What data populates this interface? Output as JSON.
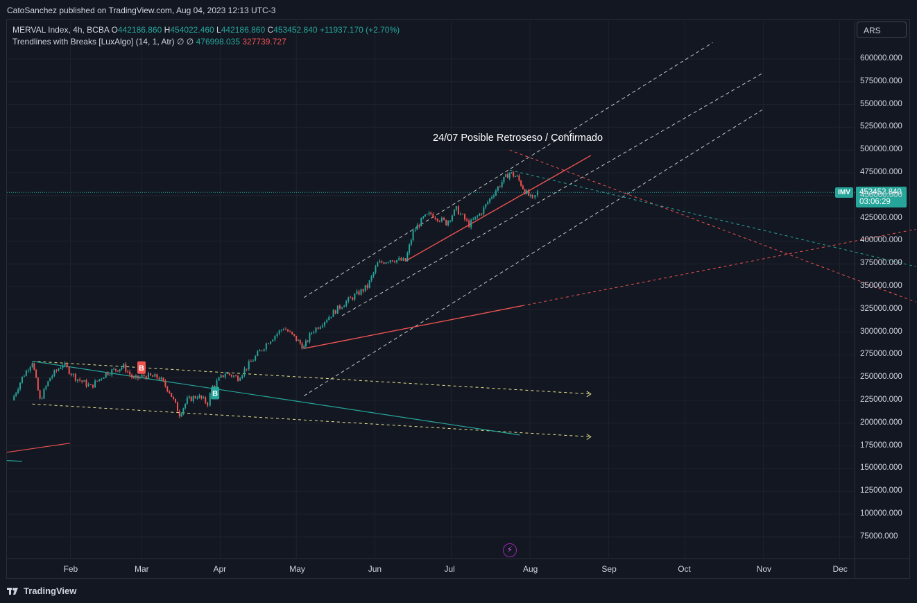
{
  "header": {
    "published": "CatoSanchez published on TradingView.com, Aug 04, 2023 12:13 UTC-3"
  },
  "legend": {
    "symbol": "MERVAL Index, 4h, BCBA",
    "o_label": "O",
    "o": "442186.860",
    "h_label": "H",
    "h": "454022.460",
    "l_label": "L",
    "l": "442186.860",
    "c_label": "C",
    "c": "453452.840",
    "change": "+11937.170 (+2.70%)",
    "indicator": "Trendlines with Breaks [LuxAlgo] (14, 1, Atr)",
    "indicator_flags": "∅  ∅",
    "ind_v1": "476998.035",
    "ind_v2": "327739.727"
  },
  "currency": "ARS",
  "symbol_tag": "IMV",
  "last_price": "453452.840",
  "countdown": "03:06:29",
  "annotation": "24/07 Posible Retroseso / Confirmado",
  "footer": {
    "brand": "TradingView"
  },
  "colors": {
    "up": "#26a69a",
    "down": "#ef5350",
    "bg": "#131722",
    "white_dash": "#c8c8c8",
    "yellow_dash": "#e6e68c",
    "teal_line": "#26a69a"
  },
  "icons": {
    "flash": "lightning-icon",
    "logo": "tradingview-logo-icon"
  },
  "chart_data": {
    "type": "candlestick",
    "ylim": [
      55000,
      625000
    ],
    "y_ticks": [
      "600000.000",
      "575000.000",
      "550000.000",
      "525000.000",
      "500000.000",
      "475000.000",
      "450000.000",
      "425000.000",
      "400000.000",
      "375000.000",
      "350000.000",
      "325000.000",
      "300000.000",
      "275000.000",
      "250000.000",
      "225000.000",
      "200000.000",
      "175000.000",
      "150000.000",
      "125000.000",
      "100000.000",
      "75000.000"
    ],
    "x_ticks": [
      "Feb",
      "Mar",
      "Apr",
      "May",
      "Jun",
      "Jul",
      "Aug",
      "Sep",
      "Oct",
      "Nov",
      "Dec"
    ],
    "series": [
      {
        "name": "MERVAL Index",
        "close_path": [
          [
            "2023-01-09",
            225000
          ],
          [
            "2023-01-13",
            250000
          ],
          [
            "2023-01-17",
            268000
          ],
          [
            "2023-01-20",
            225000
          ],
          [
            "2023-01-24",
            250000
          ],
          [
            "2023-01-29",
            265000
          ],
          [
            "2023-02-03",
            250000
          ],
          [
            "2023-02-09",
            240000
          ],
          [
            "2023-02-15",
            255000
          ],
          [
            "2023-02-22",
            262000
          ],
          [
            "2023-02-26",
            248000
          ],
          [
            "2023-03-02",
            252000
          ],
          [
            "2023-03-08",
            250000
          ],
          [
            "2023-03-12",
            235000
          ],
          [
            "2023-03-16",
            210000
          ],
          [
            "2023-03-19",
            225000
          ],
          [
            "2023-03-23",
            230000
          ],
          [
            "2023-03-27",
            222000
          ],
          [
            "2023-03-29",
            240000
          ],
          [
            "2023-04-03",
            255000
          ],
          [
            "2023-04-08",
            250000
          ],
          [
            "2023-04-14",
            270000
          ],
          [
            "2023-04-20",
            290000
          ],
          [
            "2023-04-26",
            305000
          ],
          [
            "2023-05-01",
            292000
          ],
          [
            "2023-05-04",
            283000
          ],
          [
            "2023-05-07",
            300000
          ],
          [
            "2023-05-13",
            315000
          ],
          [
            "2023-05-19",
            330000
          ],
          [
            "2023-05-24",
            340000
          ],
          [
            "2023-05-29",
            350000
          ],
          [
            "2023-06-02",
            375000
          ],
          [
            "2023-06-07",
            380000
          ],
          [
            "2023-06-13",
            378000
          ],
          [
            "2023-06-16",
            410000
          ],
          [
            "2023-06-20",
            425000
          ],
          [
            "2023-06-23",
            430000
          ],
          [
            "2023-06-29",
            420000
          ],
          [
            "2023-07-03",
            435000
          ],
          [
            "2023-07-08",
            418000
          ],
          [
            "2023-07-13",
            432000
          ],
          [
            "2023-07-17",
            450000
          ],
          [
            "2023-07-21",
            465000
          ],
          [
            "2023-07-24",
            475000
          ],
          [
            "2023-07-27",
            470000
          ],
          [
            "2023-07-30",
            455000
          ],
          [
            "2023-08-02",
            445000
          ],
          [
            "2023-08-04",
            453452
          ]
        ]
      }
    ],
    "drawn_lines": [
      {
        "kind": "white-dashed-channel",
        "from": [
          "2023-05-04",
          338000
        ],
        "to": [
          "2023-10-12",
          618000
        ]
      },
      {
        "kind": "white-dashed-channel",
        "from": [
          "2023-05-19",
          318000
        ],
        "to": [
          "2023-11-01",
          585000
        ]
      },
      {
        "kind": "white-dashed-channel",
        "from": [
          "2023-05-04",
          230000
        ],
        "to": [
          "2023-11-01",
          545000
        ]
      },
      {
        "kind": "yellow-dashed",
        "from": [
          "2023-01-17",
          268000
        ],
        "to": [
          "2023-08-25",
          232000
        ]
      },
      {
        "kind": "yellow-dashed",
        "from": [
          "2023-01-17",
          221000
        ],
        "to": [
          "2023-08-25",
          185000
        ]
      },
      {
        "kind": "teal-solid",
        "from": [
          "2023-01-17",
          268000
        ],
        "to": [
          "2023-07-28",
          187000
        ]
      },
      {
        "kind": "red-solid",
        "from": [
          "2023-05-04",
          282000
        ],
        "to": [
          "2023-07-29",
          329000
        ]
      },
      {
        "kind": "red-dashed",
        "from": [
          "2023-07-29",
          329000
        ],
        "to": [
          "2023-12-31",
          413000
        ]
      },
      {
        "kind": "red-solid",
        "from": [
          "2023-06-13",
          378000
        ],
        "to": [
          "2023-08-25",
          494000
        ]
      },
      {
        "kind": "red-dashed",
        "from": [
          "2023-07-24",
          500000
        ],
        "to": [
          "2023-12-31",
          333000
        ]
      },
      {
        "kind": "teal-dashed",
        "from": [
          "2023-07-24",
          478000
        ],
        "to": [
          "2023-12-31",
          372000
        ]
      }
    ],
    "break_markers": [
      {
        "label": "B",
        "color": "#ef5350",
        "x": "2023-03-01",
        "y": 261000
      },
      {
        "label": "B",
        "color": "#26a69a",
        "x": "2023-03-30",
        "y": 233000
      }
    ]
  }
}
